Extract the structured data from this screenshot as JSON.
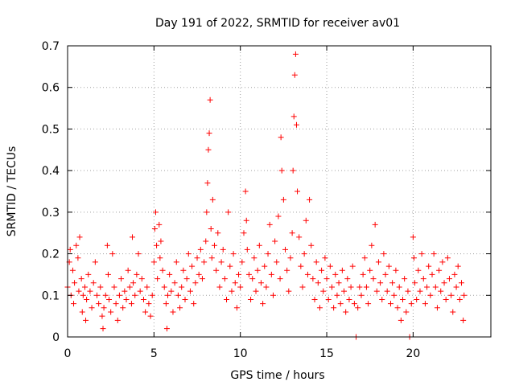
{
  "chart_data": {
    "type": "scatter",
    "title": "Day 191 of 2022, SRMTID for receiver av01",
    "xlabel": "GPS time / hours",
    "ylabel": "SRMTID / TECUs",
    "xlim": [
      0,
      24.5
    ],
    "ylim": [
      0,
      0.7
    ],
    "xticks": [
      0,
      5,
      10,
      15,
      20
    ],
    "yticks": [
      0,
      0.1,
      0.2,
      0.3,
      0.4,
      0.5,
      0.6,
      0.7
    ],
    "xtick_labels": [
      "0",
      "5",
      "10",
      "15",
      "20"
    ],
    "ytick_labels": [
      "0",
      "0.1",
      "0.2",
      "0.3",
      "0.4",
      "0.5",
      "0.6",
      "0.7"
    ],
    "grid": true,
    "marker": "+",
    "color": "#ff0000",
    "series": [
      {
        "name": "SRMTID",
        "points": [
          [
            0.0,
            0.12
          ],
          [
            0.1,
            0.18
          ],
          [
            0.15,
            0.21
          ],
          [
            0.2,
            0.1
          ],
          [
            0.3,
            0.16
          ],
          [
            0.35,
            0.08
          ],
          [
            0.4,
            0.13
          ],
          [
            0.5,
            0.22
          ],
          [
            0.6,
            0.19
          ],
          [
            0.65,
            0.11
          ],
          [
            0.7,
            0.24
          ],
          [
            0.8,
            0.14
          ],
          [
            0.85,
            0.06
          ],
          [
            0.9,
            0.1
          ],
          [
            1.0,
            0.12
          ],
          [
            1.05,
            0.04
          ],
          [
            1.1,
            0.09
          ],
          [
            1.2,
            0.15
          ],
          [
            1.3,
            0.11
          ],
          [
            1.4,
            0.07
          ],
          [
            1.5,
            0.13
          ],
          [
            1.6,
            0.18
          ],
          [
            1.7,
            0.1
          ],
          [
            1.8,
            0.08
          ],
          [
            1.9,
            0.12
          ],
          [
            2.0,
            0.05
          ],
          [
            2.05,
            0.02
          ],
          [
            2.1,
            0.07
          ],
          [
            2.2,
            0.1
          ],
          [
            2.3,
            0.22
          ],
          [
            2.35,
            0.15
          ],
          [
            2.4,
            0.09
          ],
          [
            2.5,
            0.06
          ],
          [
            2.6,
            0.2
          ],
          [
            2.7,
            0.12
          ],
          [
            2.8,
            0.08
          ],
          [
            2.9,
            0.04
          ],
          [
            3.0,
            0.1
          ],
          [
            3.1,
            0.14
          ],
          [
            3.2,
            0.07
          ],
          [
            3.3,
            0.11
          ],
          [
            3.4,
            0.09
          ],
          [
            3.5,
            0.16
          ],
          [
            3.6,
            0.12
          ],
          [
            3.7,
            0.08
          ],
          [
            3.75,
            0.24
          ],
          [
            3.8,
            0.13
          ],
          [
            3.9,
            0.1
          ],
          [
            4.0,
            0.15
          ],
          [
            4.1,
            0.2
          ],
          [
            4.2,
            0.11
          ],
          [
            4.3,
            0.14
          ],
          [
            4.4,
            0.09
          ],
          [
            4.5,
            0.06
          ],
          [
            4.6,
            0.12
          ],
          [
            4.7,
            0.08
          ],
          [
            4.8,
            0.05
          ],
          [
            4.9,
            0.1
          ],
          [
            5.0,
            0.18
          ],
          [
            5.05,
            0.26
          ],
          [
            5.1,
            0.3
          ],
          [
            5.15,
            0.22
          ],
          [
            5.2,
            0.14
          ],
          [
            5.3,
            0.27
          ],
          [
            5.35,
            0.19
          ],
          [
            5.4,
            0.23
          ],
          [
            5.5,
            0.16
          ],
          [
            5.6,
            0.12
          ],
          [
            5.7,
            0.08
          ],
          [
            5.75,
            0.02
          ],
          [
            5.8,
            0.1
          ],
          [
            5.9,
            0.15
          ],
          [
            6.0,
            0.11
          ],
          [
            6.1,
            0.06
          ],
          [
            6.2,
            0.13
          ],
          [
            6.3,
            0.18
          ],
          [
            6.4,
            0.1
          ],
          [
            6.5,
            0.07
          ],
          [
            6.6,
            0.12
          ],
          [
            6.7,
            0.16
          ],
          [
            6.8,
            0.09
          ],
          [
            6.9,
            0.14
          ],
          [
            7.0,
            0.2
          ],
          [
            7.1,
            0.11
          ],
          [
            7.2,
            0.17
          ],
          [
            7.3,
            0.08
          ],
          [
            7.4,
            0.13
          ],
          [
            7.5,
            0.19
          ],
          [
            7.6,
            0.15
          ],
          [
            7.7,
            0.21
          ],
          [
            7.8,
            0.14
          ],
          [
            7.9,
            0.18
          ],
          [
            8.0,
            0.23
          ],
          [
            8.05,
            0.3
          ],
          [
            8.1,
            0.37
          ],
          [
            8.15,
            0.45
          ],
          [
            8.2,
            0.49
          ],
          [
            8.25,
            0.57
          ],
          [
            8.3,
            0.26
          ],
          [
            8.35,
            0.19
          ],
          [
            8.4,
            0.33
          ],
          [
            8.5,
            0.22
          ],
          [
            8.6,
            0.16
          ],
          [
            8.7,
            0.25
          ],
          [
            8.8,
            0.12
          ],
          [
            8.9,
            0.18
          ],
          [
            9.0,
            0.21
          ],
          [
            9.1,
            0.14
          ],
          [
            9.2,
            0.09
          ],
          [
            9.3,
            0.3
          ],
          [
            9.4,
            0.17
          ],
          [
            9.5,
            0.11
          ],
          [
            9.6,
            0.2
          ],
          [
            9.7,
            0.13
          ],
          [
            9.8,
            0.07
          ],
          [
            9.9,
            0.15
          ],
          [
            10.0,
            0.12
          ],
          [
            10.1,
            0.18
          ],
          [
            10.2,
            0.25
          ],
          [
            10.3,
            0.35
          ],
          [
            10.35,
            0.28
          ],
          [
            10.4,
            0.21
          ],
          [
            10.5,
            0.15
          ],
          [
            10.6,
            0.09
          ],
          [
            10.7,
            0.14
          ],
          [
            10.8,
            0.19
          ],
          [
            10.9,
            0.11
          ],
          [
            11.0,
            0.16
          ],
          [
            11.1,
            0.22
          ],
          [
            11.2,
            0.13
          ],
          [
            11.3,
            0.08
          ],
          [
            11.4,
            0.17
          ],
          [
            11.5,
            0.12
          ],
          [
            11.6,
            0.2
          ],
          [
            11.7,
            0.27
          ],
          [
            11.8,
            0.15
          ],
          [
            11.9,
            0.1
          ],
          [
            12.0,
            0.23
          ],
          [
            12.1,
            0.18
          ],
          [
            12.2,
            0.29
          ],
          [
            12.3,
            0.14
          ],
          [
            12.35,
            0.48
          ],
          [
            12.4,
            0.4
          ],
          [
            12.5,
            0.33
          ],
          [
            12.6,
            0.21
          ],
          [
            12.7,
            0.16
          ],
          [
            12.8,
            0.11
          ],
          [
            12.9,
            0.19
          ],
          [
            13.0,
            0.25
          ],
          [
            13.05,
            0.4
          ],
          [
            13.1,
            0.53
          ],
          [
            13.15,
            0.63
          ],
          [
            13.2,
            0.68
          ],
          [
            13.25,
            0.51
          ],
          [
            13.3,
            0.35
          ],
          [
            13.4,
            0.24
          ],
          [
            13.5,
            0.17
          ],
          [
            13.6,
            0.12
          ],
          [
            13.7,
            0.2
          ],
          [
            13.8,
            0.28
          ],
          [
            13.9,
            0.15
          ],
          [
            14.0,
            0.33
          ],
          [
            14.1,
            0.22
          ],
          [
            14.2,
            0.14
          ],
          [
            14.3,
            0.09
          ],
          [
            14.4,
            0.18
          ],
          [
            14.5,
            0.13
          ],
          [
            14.6,
            0.07
          ],
          [
            14.7,
            0.16
          ],
          [
            14.8,
            0.11
          ],
          [
            14.9,
            0.19
          ],
          [
            15.0,
            0.14
          ],
          [
            15.1,
            0.09
          ],
          [
            15.2,
            0.17
          ],
          [
            15.3,
            0.12
          ],
          [
            15.4,
            0.07
          ],
          [
            15.5,
            0.15
          ],
          [
            15.6,
            0.1
          ],
          [
            15.7,
            0.13
          ],
          [
            15.8,
            0.08
          ],
          [
            15.9,
            0.16
          ],
          [
            16.0,
            0.11
          ],
          [
            16.1,
            0.06
          ],
          [
            16.2,
            0.14
          ],
          [
            16.3,
            0.09
          ],
          [
            16.4,
            0.12
          ],
          [
            16.5,
            0.17
          ],
          [
            16.6,
            0.08
          ],
          [
            16.7,
            0.0
          ],
          [
            16.8,
            0.07
          ],
          [
            16.9,
            0.12
          ],
          [
            17.0,
            0.1
          ],
          [
            17.1,
            0.15
          ],
          [
            17.2,
            0.19
          ],
          [
            17.3,
            0.12
          ],
          [
            17.4,
            0.08
          ],
          [
            17.5,
            0.16
          ],
          [
            17.6,
            0.22
          ],
          [
            17.7,
            0.14
          ],
          [
            17.8,
            0.27
          ],
          [
            17.9,
            0.11
          ],
          [
            18.0,
            0.18
          ],
          [
            18.1,
            0.13
          ],
          [
            18.2,
            0.09
          ],
          [
            18.3,
            0.2
          ],
          [
            18.4,
            0.15
          ],
          [
            18.5,
            0.11
          ],
          [
            18.6,
            0.17
          ],
          [
            18.7,
            0.08
          ],
          [
            18.8,
            0.13
          ],
          [
            18.9,
            0.1
          ],
          [
            19.0,
            0.16
          ],
          [
            19.1,
            0.07
          ],
          [
            19.2,
            0.12
          ],
          [
            19.3,
            0.04
          ],
          [
            19.4,
            0.09
          ],
          [
            19.5,
            0.14
          ],
          [
            19.6,
            0.06
          ],
          [
            19.7,
            0.11
          ],
          [
            19.8,
            0.0
          ],
          [
            19.9,
            0.08
          ],
          [
            20.0,
            0.24
          ],
          [
            20.05,
            0.19
          ],
          [
            20.1,
            0.13
          ],
          [
            20.2,
            0.09
          ],
          [
            20.3,
            0.16
          ],
          [
            20.4,
            0.11
          ],
          [
            20.5,
            0.2
          ],
          [
            20.6,
            0.14
          ],
          [
            20.7,
            0.08
          ],
          [
            20.8,
            0.12
          ],
          [
            20.9,
            0.17
          ],
          [
            21.0,
            0.1
          ],
          [
            21.1,
            0.15
          ],
          [
            21.2,
            0.2
          ],
          [
            21.3,
            0.12
          ],
          [
            21.4,
            0.07
          ],
          [
            21.5,
            0.16
          ],
          [
            21.6,
            0.11
          ],
          [
            21.7,
            0.18
          ],
          [
            21.8,
            0.13
          ],
          [
            21.9,
            0.09
          ],
          [
            22.0,
            0.19
          ],
          [
            22.1,
            0.14
          ],
          [
            22.2,
            0.1
          ],
          [
            22.3,
            0.06
          ],
          [
            22.4,
            0.15
          ],
          [
            22.5,
            0.12
          ],
          [
            22.6,
            0.17
          ],
          [
            22.7,
            0.09
          ],
          [
            22.8,
            0.13
          ],
          [
            22.9,
            0.04
          ],
          [
            22.95,
            0.1
          ]
        ]
      }
    ]
  }
}
